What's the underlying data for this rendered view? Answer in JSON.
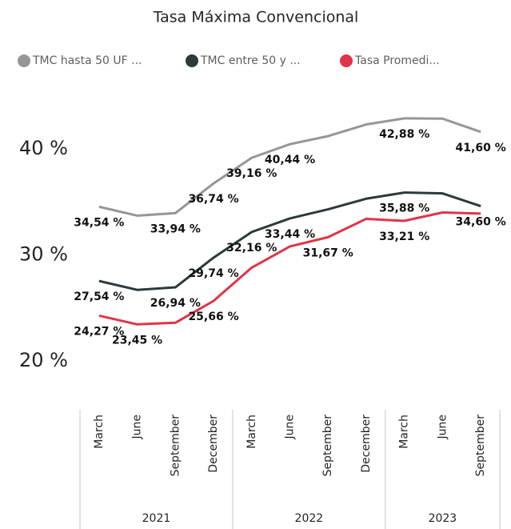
{
  "chart_data": {
    "type": "line",
    "title": "Tasa Máxima Convencional",
    "category_groups": [
      {
        "label": "2021",
        "categories": [
          "March",
          "June",
          "September",
          "December"
        ]
      },
      {
        "label": "2022",
        "categories": [
          "March",
          "June",
          "September",
          "December"
        ]
      },
      {
        "label": "2023",
        "categories": [
          "March",
          "June",
          "September"
        ]
      }
    ],
    "series": [
      {
        "name": "TMC hasta 50 UF ...",
        "color": "#969696",
        "values": [
          34.54,
          33.7,
          33.94,
          36.74,
          39.16,
          40.44,
          41.2,
          42.3,
          42.88,
          42.85,
          41.6
        ],
        "value_labels": [
          "34,54 %",
          null,
          "33,94 %",
          "36,74 %",
          "39,16 %",
          "40,44 %",
          null,
          null,
          "42,88 %",
          null,
          "41,60 %"
        ]
      },
      {
        "name": "TMC entre 50 y ...",
        "color": "#2b3a3b",
        "values": [
          27.54,
          26.7,
          26.94,
          29.74,
          32.16,
          33.44,
          34.3,
          35.3,
          35.88,
          35.8,
          34.6
        ],
        "value_labels": [
          "27,54 %",
          null,
          "26,94 %",
          "29,74 %",
          "32,16 %",
          "33,44 %",
          null,
          null,
          "35,88 %",
          null,
          "34,60 %"
        ]
      },
      {
        "name": "Tasa Promedi...",
        "color": "#e03447",
        "values": [
          24.27,
          23.45,
          23.6,
          25.66,
          28.8,
          30.8,
          31.67,
          33.4,
          33.21,
          34.0,
          33.9
        ],
        "value_labels": [
          "24,27 %",
          "23,45 %",
          null,
          "25,66 %",
          null,
          null,
          "31,67 %",
          null,
          "33,21 %",
          null,
          null
        ]
      }
    ],
    "ylim": [
      16,
      46
    ],
    "yticks": [
      {
        "value": 20,
        "label": "20 %"
      },
      {
        "value": 30,
        "label": "30 %"
      },
      {
        "value": 40,
        "label": "40 %"
      }
    ]
  }
}
